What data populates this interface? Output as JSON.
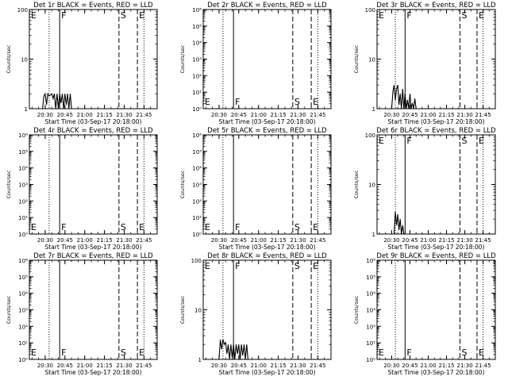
{
  "page": {
    "x_ticks": [
      "20:30",
      "20:45",
      "21:00",
      "21:15",
      "21:30",
      "21:45"
    ],
    "x_label": "Start Time (03-Sep-17 20:18:00)",
    "y_label": "Counts/sec",
    "marker_labels": {
      "F": "F",
      "S": "S",
      "E": "E"
    },
    "colors": {
      "events": "#000000",
      "lld": "#ff0000",
      "background": "#ffffff"
    }
  },
  "chart_data": [
    {
      "type": "line",
      "title": "Det 1r BLACK = Events, RED = LLD",
      "xlabel": "Start Time (03-Sep-17 20:18:00)",
      "ylabel": "Counts/sec",
      "y_scale": "log",
      "ylim": [
        1,
        100
      ],
      "y_ticks": [
        {
          "v": 1,
          "label": "1"
        },
        {
          "v": 10,
          "label": "10"
        },
        {
          "v": 100,
          "label": "100"
        }
      ],
      "x_unit": "minutes after 20:18:00",
      "xlim": [
        0,
        97
      ],
      "markers": [
        {
          "label": "E",
          "x": 0,
          "style": "solid"
        },
        {
          "label": "F",
          "x": 23,
          "style": "solid"
        },
        {
          "label": "S",
          "x": 68,
          "style": "dashed"
        },
        {
          "label": "E",
          "x": 82,
          "style": "dashed"
        }
      ],
      "dotted_lines": [
        15,
        87
      ],
      "series": [
        {
          "name": "Events",
          "color": "#000000",
          "points": [
            [
              10,
              1.0
            ],
            [
              11,
              1.8
            ],
            [
              12,
              2.0
            ],
            [
              13,
              1.2
            ],
            [
              14,
              2.0
            ],
            [
              15,
              1.8
            ],
            [
              16,
              1.9
            ],
            [
              17,
              2.0
            ],
            [
              18,
              1.6
            ],
            [
              19,
              2.0
            ],
            [
              20,
              1.0
            ],
            [
              21,
              2.0
            ],
            [
              22,
              1.0
            ],
            [
              23,
              2.0
            ],
            [
              24,
              1.3
            ],
            [
              25,
              2.0
            ],
            [
              26,
              1.0
            ],
            [
              27,
              2.0
            ],
            [
              28,
              1.2
            ],
            [
              29,
              2.0
            ],
            [
              30,
              1.0
            ],
            [
              31,
              2.0
            ],
            [
              32,
              1.0
            ],
            [
              33,
              1.0
            ]
          ]
        }
      ]
    },
    {
      "type": "line",
      "title": "Det 2r BLACK = Events, RED = LLD",
      "xlabel": "Start Time (03-Sep-17 20:18:00)",
      "ylabel": "Counts/sec",
      "y_scale": "log",
      "ylim": [
        1,
        1000000
      ],
      "y_ticks": [
        {
          "v": 1,
          "label": "10⁰"
        },
        {
          "v": 10,
          "label": "10¹"
        },
        {
          "v": 100,
          "label": "10²"
        },
        {
          "v": 1000,
          "label": "10³"
        },
        {
          "v": 10000,
          "label": "10⁴"
        },
        {
          "v": 100000,
          "label": "10⁵"
        },
        {
          "v": 1000000,
          "label": "10⁶"
        }
      ],
      "x_unit": "minutes after 20:18:00",
      "xlim": [
        0,
        97
      ],
      "markers": [
        {
          "label": "E",
          "x": 0,
          "style": "solid"
        },
        {
          "label": "F",
          "x": 23,
          "style": "solid"
        },
        {
          "label": "S",
          "x": 68,
          "style": "dashed"
        },
        {
          "label": "E",
          "x": 82,
          "style": "dashed"
        }
      ],
      "dotted_lines": [
        15,
        87
      ],
      "series": []
    },
    {
      "type": "line",
      "title": "Det 3r BLACK = Events, RED = LLD",
      "xlabel": "Start Time (03-Sep-17 20:18:00)",
      "ylabel": "Counts/sec",
      "y_scale": "log",
      "ylim": [
        1,
        100
      ],
      "y_ticks": [
        {
          "v": 1,
          "label": "1"
        },
        {
          "v": 10,
          "label": "10"
        },
        {
          "v": 100,
          "label": "100"
        }
      ],
      "x_unit": "minutes after 20:18:00",
      "xlim": [
        0,
        97
      ],
      "markers": [
        {
          "label": "E",
          "x": 0,
          "style": "solid"
        },
        {
          "label": "F",
          "x": 23,
          "style": "solid"
        },
        {
          "label": "S",
          "x": 68,
          "style": "dashed"
        },
        {
          "label": "E",
          "x": 82,
          "style": "dashed"
        }
      ],
      "dotted_lines": [
        15,
        87
      ],
      "series": [
        {
          "name": "Events",
          "color": "#000000",
          "points": [
            [
              12,
              1.0
            ],
            [
              13,
              2.2
            ],
            [
              14,
              3.0
            ],
            [
              15,
              1.5
            ],
            [
              16,
              2.5
            ],
            [
              17,
              3.0
            ],
            [
              18,
              1.2
            ],
            [
              19,
              2.0
            ],
            [
              20,
              1.0
            ],
            [
              21,
              2.5
            ],
            [
              22,
              1.0
            ],
            [
              23,
              2.0
            ],
            [
              24,
              1.0
            ],
            [
              25,
              1.5
            ],
            [
              26,
              1.0
            ],
            [
              27,
              2.0
            ],
            [
              28,
              1.0
            ],
            [
              29,
              1.3
            ],
            [
              30,
              1.0
            ],
            [
              31,
              1.6
            ],
            [
              32,
              1.0
            ]
          ]
        },
        {
          "name": "LLD",
          "color": "#ff0000",
          "points": [
            [
              30,
              100
            ],
            [
              38,
              100
            ],
            [
              46,
              100
            ],
            [
              50,
              100
            ]
          ]
        }
      ]
    },
    {
      "type": "line",
      "title": "Det 4r BLACK = Events, RED = LLD",
      "xlabel": "Start Time (03-Sep-17 20:18:00)",
      "ylabel": "Counts/sec",
      "y_scale": "log",
      "ylim": [
        1,
        1000000
      ],
      "y_ticks": [
        {
          "v": 1,
          "label": "10⁰"
        },
        {
          "v": 10,
          "label": "10¹"
        },
        {
          "v": 100,
          "label": "10²"
        },
        {
          "v": 1000,
          "label": "10³"
        },
        {
          "v": 10000,
          "label": "10⁴"
        },
        {
          "v": 100000,
          "label": "10⁵"
        },
        {
          "v": 1000000,
          "label": "10⁶"
        }
      ],
      "x_unit": "minutes after 20:18:00",
      "xlim": [
        0,
        97
      ],
      "markers": [
        {
          "label": "E",
          "x": 0,
          "style": "solid"
        },
        {
          "label": "F",
          "x": 23,
          "style": "solid"
        },
        {
          "label": "S",
          "x": 68,
          "style": "dashed"
        },
        {
          "label": "E",
          "x": 82,
          "style": "dashed"
        }
      ],
      "dotted_lines": [
        15,
        87
      ],
      "series": []
    },
    {
      "type": "line",
      "title": "Det 5r BLACK = Events, RED = LLD",
      "xlabel": "Start Time (03-Sep-17 20:18:00)",
      "ylabel": "Counts/sec",
      "y_scale": "log",
      "ylim": [
        1,
        1000000
      ],
      "y_ticks": [
        {
          "v": 1,
          "label": "10⁰"
        },
        {
          "v": 10,
          "label": "10¹"
        },
        {
          "v": 100,
          "label": "10²"
        },
        {
          "v": 1000,
          "label": "10³"
        },
        {
          "v": 10000,
          "label": "10⁴"
        },
        {
          "v": 100000,
          "label": "10⁵"
        },
        {
          "v": 1000000,
          "label": "10⁶"
        }
      ],
      "x_unit": "minutes after 20:18:00",
      "xlim": [
        0,
        97
      ],
      "markers": [
        {
          "label": "E",
          "x": 0,
          "style": "solid"
        },
        {
          "label": "F",
          "x": 23,
          "style": "solid"
        },
        {
          "label": "S",
          "x": 68,
          "style": "dashed"
        },
        {
          "label": "E",
          "x": 82,
          "style": "dashed"
        }
      ],
      "dotted_lines": [
        15,
        87
      ],
      "series": []
    },
    {
      "type": "line",
      "title": "Det 6r BLACK = Events, RED = LLD",
      "xlabel": "Start Time (03-Sep-17 20:18:00)",
      "ylabel": "Counts/sec",
      "y_scale": "log",
      "ylim": [
        1,
        100
      ],
      "y_ticks": [
        {
          "v": 1,
          "label": "1"
        },
        {
          "v": 10,
          "label": "10"
        },
        {
          "v": 100,
          "label": "100"
        }
      ],
      "x_unit": "minutes after 20:18:00",
      "xlim": [
        0,
        97
      ],
      "markers": [
        {
          "label": "E",
          "x": 0,
          "style": "solid"
        },
        {
          "label": "F",
          "x": 23,
          "style": "solid"
        },
        {
          "label": "S",
          "x": 68,
          "style": "dashed"
        },
        {
          "label": "E",
          "x": 82,
          "style": "dashed"
        }
      ],
      "dotted_lines": [
        15,
        87
      ],
      "series": [
        {
          "name": "Events",
          "color": "#000000",
          "points": [
            [
              14,
              1.0
            ],
            [
              15,
              2.8
            ],
            [
              16,
              1.5
            ],
            [
              17,
              2.5
            ],
            [
              18,
              1.2
            ],
            [
              19,
              2.0
            ],
            [
              20,
              1.0
            ],
            [
              21,
              1.5
            ],
            [
              22,
              1.0
            ]
          ]
        }
      ]
    },
    {
      "type": "line",
      "title": "Det 7r BLACK = Events, RED = LLD",
      "xlabel": "Start Time (03-Sep-17 20:18:00)",
      "ylabel": "Counts/sec",
      "y_scale": "log",
      "ylim": [
        1,
        1000000
      ],
      "y_ticks": [
        {
          "v": 1,
          "label": "10⁰"
        },
        {
          "v": 10,
          "label": "10¹"
        },
        {
          "v": 100,
          "label": "10²"
        },
        {
          "v": 1000,
          "label": "10³"
        },
        {
          "v": 10000,
          "label": "10⁴"
        },
        {
          "v": 100000,
          "label": "10⁵"
        },
        {
          "v": 1000000,
          "label": "10⁶"
        }
      ],
      "x_unit": "minutes after 20:18:00",
      "xlim": [
        0,
        97
      ],
      "markers": [
        {
          "label": "E",
          "x": 0,
          "style": "solid"
        },
        {
          "label": "F",
          "x": 23,
          "style": "solid"
        },
        {
          "label": "S",
          "x": 68,
          "style": "dashed"
        },
        {
          "label": "E",
          "x": 82,
          "style": "dashed"
        }
      ],
      "dotted_lines": [
        15,
        87
      ],
      "series": []
    },
    {
      "type": "line",
      "title": "Det 8r BLACK = Events, RED = LLD",
      "xlabel": "Start Time (03-Sep-17 20:18:00)",
      "ylabel": "Counts/sec",
      "y_scale": "log",
      "ylim": [
        1,
        100
      ],
      "y_ticks": [
        {
          "v": 1,
          "label": "1"
        },
        {
          "v": 10,
          "label": "10"
        },
        {
          "v": 100,
          "label": "100"
        }
      ],
      "x_unit": "minutes after 20:18:00",
      "xlim": [
        0,
        97
      ],
      "markers": [
        {
          "label": "E",
          "x": 0,
          "style": "solid"
        },
        {
          "label": "F",
          "x": 23,
          "style": "solid"
        },
        {
          "label": "S",
          "x": 68,
          "style": "dashed"
        },
        {
          "label": "E",
          "x": 82,
          "style": "dashed"
        }
      ],
      "dotted_lines": [
        15,
        87
      ],
      "series": [
        {
          "name": "Events",
          "color": "#000000",
          "points": [
            [
              12,
              1.0
            ],
            [
              13,
              2.5
            ],
            [
              14,
              1.6
            ],
            [
              15,
              2.5
            ],
            [
              16,
              2.0
            ],
            [
              17,
              2.2
            ],
            [
              18,
              1.3
            ],
            [
              19,
              2.0
            ],
            [
              20,
              1.0
            ],
            [
              21,
              2.0
            ],
            [
              22,
              1.1
            ],
            [
              23,
              2.0
            ],
            [
              24,
              1.0
            ],
            [
              25,
              2.0
            ],
            [
              26,
              1.3
            ],
            [
              27,
              2.0
            ],
            [
              28,
              1.0
            ],
            [
              29,
              2.0
            ],
            [
              30,
              1.2
            ],
            [
              31,
              2.0
            ],
            [
              32,
              1.0
            ],
            [
              33,
              2.0
            ],
            [
              34,
              1.0
            ],
            [
              35,
              1.0
            ]
          ]
        }
      ]
    },
    {
      "type": "line",
      "title": "Det 9r BLACK = Events, RED = LLD",
      "xlabel": "Start Time (03-Sep-17 20:18:00)",
      "ylabel": "Counts/sec",
      "y_scale": "log",
      "ylim": [
        1,
        1000000
      ],
      "y_ticks": [
        {
          "v": 1,
          "label": "10⁰"
        },
        {
          "v": 10,
          "label": "10¹"
        },
        {
          "v": 100,
          "label": "10²"
        },
        {
          "v": 1000,
          "label": "10³"
        },
        {
          "v": 10000,
          "label": "10⁴"
        },
        {
          "v": 100000,
          "label": "10⁵"
        },
        {
          "v": 1000000,
          "label": "10⁶"
        }
      ],
      "x_unit": "minutes after 20:18:00",
      "xlim": [
        0,
        97
      ],
      "markers": [
        {
          "label": "E",
          "x": 0,
          "style": "solid"
        },
        {
          "label": "F",
          "x": 23,
          "style": "solid"
        },
        {
          "label": "S",
          "x": 68,
          "style": "dashed"
        },
        {
          "label": "E",
          "x": 82,
          "style": "dashed"
        }
      ],
      "dotted_lines": [
        15,
        87
      ],
      "series": []
    }
  ]
}
